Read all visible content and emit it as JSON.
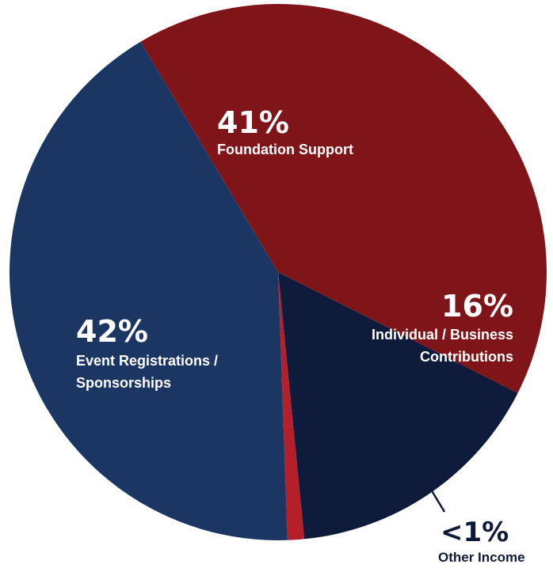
{
  "chart_data": {
    "type": "pie",
    "title": "",
    "slices": [
      {
        "key": "foundation",
        "value": 41,
        "percent_label": "41%",
        "label_lines": [
          "Foundation Support"
        ],
        "color": "#801519"
      },
      {
        "key": "individual",
        "value": 16,
        "percent_label": "16%",
        "label_lines": [
          "Individual / Business",
          "Contributions"
        ],
        "color": "#0e1b3b"
      },
      {
        "key": "other",
        "value": 1,
        "percent_label": "<1%",
        "label_lines": [
          "Other Income"
        ],
        "color": "#b51f29"
      },
      {
        "key": "event",
        "value": 42,
        "percent_label": "42%",
        "label_lines": [
          "Event Registrations /",
          "Sponsorships"
        ],
        "color": "#1b3663"
      }
    ]
  }
}
